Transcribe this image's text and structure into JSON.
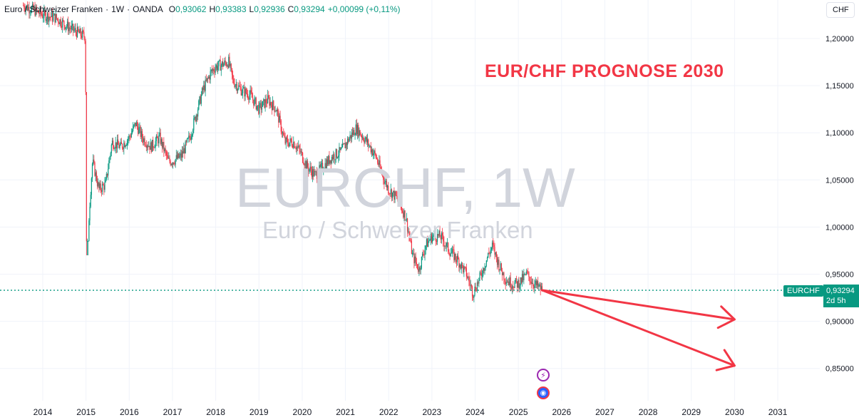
{
  "legend": {
    "title": "Euro / Schweizer Franken",
    "interval": "1W",
    "exchange": "OANDA",
    "sep": "·",
    "o_label": "O",
    "o": "0,93062",
    "h_label": "H",
    "h": "0,93383",
    "l_label": "L",
    "l": "0,92936",
    "c_label": "C",
    "c": "0,93294",
    "change": "+0,00099 (+0,11%)"
  },
  "currency": "CHF",
  "annotation": "EUR/CHF PROGNOSE 2030",
  "watermark": {
    "symbol": "EURCHF, 1W",
    "description": "Euro / Schweizer Franken"
  },
  "price_tag": {
    "symbol": "EURCHF",
    "price": "0,93294",
    "countdown": "2d 5h"
  },
  "colors": {
    "up": "#089981",
    "down": "#f23645",
    "arrow": "#f23645",
    "grid": "#f0f3fa",
    "watermark": "#d1d4dc"
  },
  "events": [
    {
      "icon": "flash-icon"
    },
    {
      "icon": "globe-icon"
    }
  ],
  "chart_data": {
    "type": "candlestick",
    "y_ticks": [
      "1,20000",
      "1,15000",
      "1,10000",
      "1,05000",
      "1,00000",
      "0,95000",
      "0,90000",
      "0,85000"
    ],
    "y_values": [
      1.2,
      1.15,
      1.1,
      1.05,
      1.0,
      0.95,
      0.9,
      0.85
    ],
    "x_ticks": [
      "2014",
      "2015",
      "2016",
      "2017",
      "2018",
      "2019",
      "2020",
      "2021",
      "2022",
      "2023",
      "2024",
      "2025",
      "2026",
      "2027",
      "2028",
      "2029",
      "2030",
      "2031"
    ],
    "last_price": 0.93294,
    "price_path": [
      [
        2013.55,
        1.235
      ],
      [
        2013.8,
        1.23
      ],
      [
        2014.0,
        1.225
      ],
      [
        2014.3,
        1.222
      ],
      [
        2014.6,
        1.212
      ],
      [
        2014.85,
        1.205
      ],
      [
        2014.98,
        1.202
      ],
      [
        2015.03,
        0.975
      ],
      [
        2015.08,
        1.02
      ],
      [
        2015.15,
        1.07
      ],
      [
        2015.3,
        1.04
      ],
      [
        2015.45,
        1.045
      ],
      [
        2015.6,
        1.09
      ],
      [
        2015.8,
        1.085
      ],
      [
        2016.0,
        1.095
      ],
      [
        2016.15,
        1.11
      ],
      [
        2016.3,
        1.095
      ],
      [
        2016.5,
        1.085
      ],
      [
        2016.7,
        1.095
      ],
      [
        2016.9,
        1.07
      ],
      [
        2017.0,
        1.07
      ],
      [
        2017.2,
        1.075
      ],
      [
        2017.4,
        1.095
      ],
      [
        2017.55,
        1.12
      ],
      [
        2017.7,
        1.145
      ],
      [
        2017.9,
        1.165
      ],
      [
        2018.0,
        1.17
      ],
      [
        2018.3,
        1.175
      ],
      [
        2018.4,
        1.155
      ],
      [
        2018.6,
        1.145
      ],
      [
        2018.8,
        1.14
      ],
      [
        2019.0,
        1.125
      ],
      [
        2019.2,
        1.135
      ],
      [
        2019.4,
        1.125
      ],
      [
        2019.6,
        1.09
      ],
      [
        2019.8,
        1.09
      ],
      [
        2019.95,
        1.08
      ],
      [
        2020.1,
        1.065
      ],
      [
        2020.3,
        1.055
      ],
      [
        2020.5,
        1.065
      ],
      [
        2020.7,
        1.075
      ],
      [
        2020.9,
        1.08
      ],
      [
        2021.1,
        1.095
      ],
      [
        2021.25,
        1.105
      ],
      [
        2021.5,
        1.09
      ],
      [
        2021.7,
        1.075
      ],
      [
        2021.9,
        1.05
      ],
      [
        2022.0,
        1.04
      ],
      [
        2022.2,
        1.03
      ],
      [
        2022.4,
        1.01
      ],
      [
        2022.55,
        0.97
      ],
      [
        2022.7,
        0.955
      ],
      [
        2022.85,
        0.98
      ],
      [
        2023.0,
        0.99
      ],
      [
        2023.2,
        0.99
      ],
      [
        2023.4,
        0.975
      ],
      [
        2023.6,
        0.965
      ],
      [
        2023.8,
        0.95
      ],
      [
        2023.95,
        0.93
      ],
      [
        2024.1,
        0.945
      ],
      [
        2024.3,
        0.97
      ],
      [
        2024.4,
        0.98
      ],
      [
        2024.55,
        0.96
      ],
      [
        2024.7,
        0.945
      ],
      [
        2024.85,
        0.94
      ],
      [
        2025.0,
        0.94
      ],
      [
        2025.1,
        0.945
      ],
      [
        2025.2,
        0.95
      ],
      [
        2025.35,
        0.94
      ],
      [
        2025.5,
        0.935
      ],
      [
        2025.55,
        0.933
      ]
    ],
    "forecast_arrows": [
      {
        "from": [
          2025.55,
          0.933
        ],
        "to": [
          2030.0,
          0.902
        ]
      },
      {
        "from": [
          2025.55,
          0.933
        ],
        "to": [
          2030.0,
          0.853
        ]
      }
    ]
  }
}
